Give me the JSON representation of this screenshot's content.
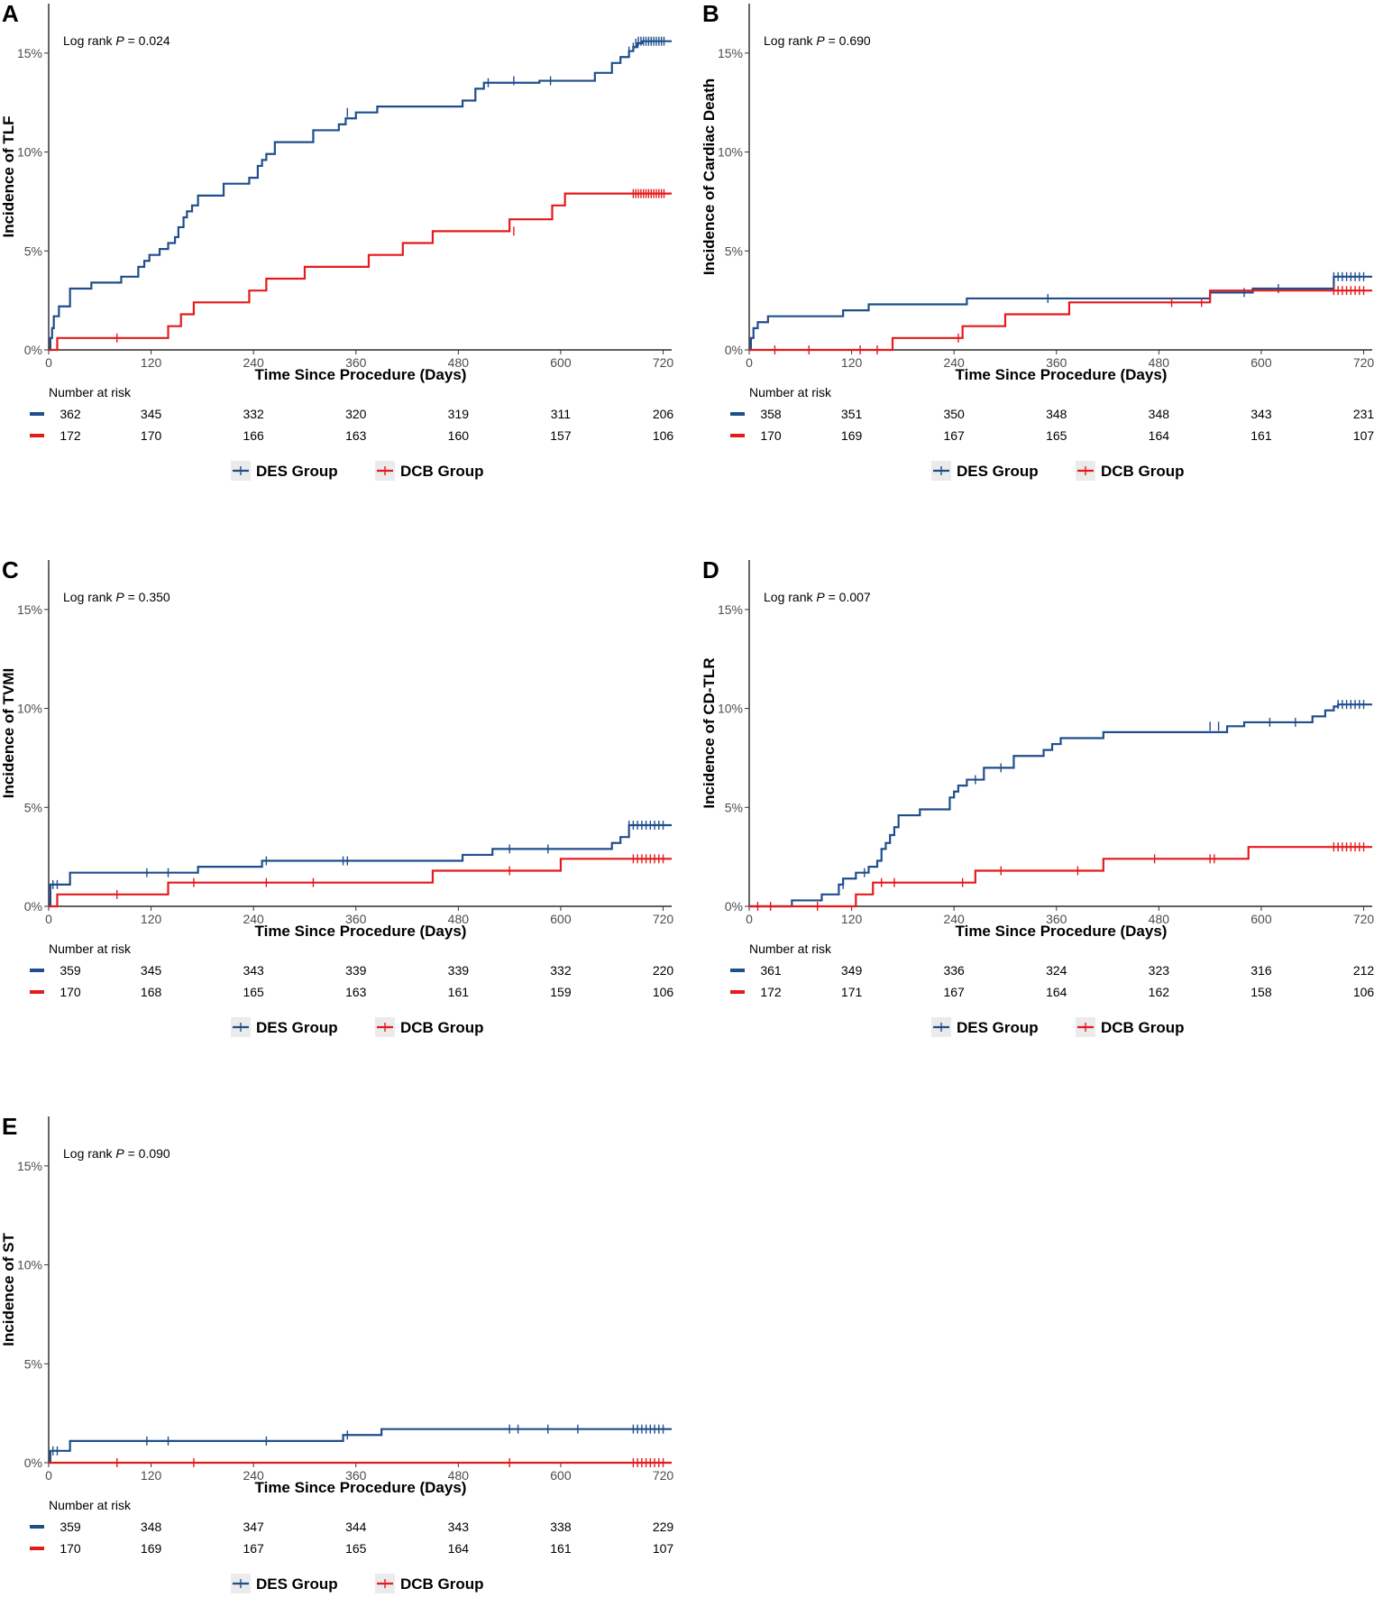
{
  "colors": {
    "des": "#1f4e8c",
    "dcb": "#e41a1c",
    "axis": "#000000",
    "legend_key_bg": "#ebebeb"
  },
  "chart_data": [
    {
      "type": "line",
      "panel_label": "A",
      "ylabel": "Incidence of TLF",
      "xlabel": "Time Since Procedure (Days)",
      "annotation": {
        "prefix": "Log rank ",
        "p_symbol": "P",
        "suffix": " = 0.024"
      },
      "ylim": [
        0,
        17.5
      ],
      "y_ticks": [
        0,
        5,
        10,
        15
      ],
      "y_tick_labels": [
        "0%",
        "5%",
        "10%",
        "15%"
      ],
      "xlim": [
        0,
        730
      ],
      "x_ticks": [
        0,
        120,
        240,
        360,
        480,
        600,
        720
      ],
      "x_tick_labels": [
        "0",
        "120",
        "240",
        "360",
        "480",
        "600",
        "720"
      ],
      "series": [
        {
          "name": "DES Group",
          "color": "#1f4e8c",
          "x": [
            0,
            2,
            4,
            6,
            12,
            25,
            50,
            85,
            105,
            112,
            118,
            130,
            140,
            148,
            152,
            158,
            162,
            168,
            175,
            205,
            235,
            245,
            250,
            255,
            265,
            310,
            340,
            348,
            360,
            385,
            485,
            500,
            510,
            575,
            640,
            660,
            670,
            680,
            685,
            690,
            695,
            730
          ],
          "y": [
            0,
            0.6,
            1.1,
            1.7,
            2.2,
            3.1,
            3.4,
            3.7,
            4.2,
            4.5,
            4.8,
            5.1,
            5.4,
            5.7,
            6.2,
            6.7,
            7.0,
            7.3,
            7.8,
            8.4,
            8.7,
            9.3,
            9.6,
            9.9,
            10.5,
            11.1,
            11.4,
            11.7,
            12.0,
            12.3,
            12.6,
            13.2,
            13.5,
            13.6,
            14.0,
            14.5,
            14.8,
            15.1,
            15.3,
            15.5,
            15.6,
            15.6
          ],
          "censor_x": [
            350,
            515,
            545,
            588,
            680,
            685,
            688,
            691,
            694,
            697,
            700,
            703,
            706,
            709,
            712,
            715,
            718,
            721
          ],
          "censor_y": [
            12.0,
            13.5,
            13.6,
            13.6,
            15.1,
            15.3,
            15.5,
            15.6,
            15.6,
            15.6,
            15.6,
            15.6,
            15.6,
            15.6,
            15.6,
            15.6,
            15.6,
            15.6
          ]
        },
        {
          "name": "DCB Group",
          "color": "#e41a1c",
          "x": [
            0,
            10,
            125,
            140,
            155,
            170,
            235,
            255,
            300,
            375,
            415,
            450,
            540,
            590,
            605,
            730
          ],
          "y": [
            0,
            0.6,
            0.6,
            1.2,
            1.8,
            2.4,
            3.0,
            3.6,
            4.2,
            4.8,
            5.4,
            6.0,
            6.6,
            7.3,
            7.9,
            7.9
          ],
          "censor_x": [
            80,
            545,
            685,
            688,
            691,
            694,
            697,
            700,
            703,
            706,
            709,
            712,
            715,
            718,
            721
          ],
          "censor_y": [
            0.6,
            6.0,
            7.9,
            7.9,
            7.9,
            7.9,
            7.9,
            7.9,
            7.9,
            7.9,
            7.9,
            7.9,
            7.9,
            7.9,
            7.9
          ]
        }
      ],
      "risk_table": {
        "title": "Number at risk",
        "des": [
          "362",
          "345",
          "332",
          "320",
          "319",
          "311",
          "206"
        ],
        "dcb": [
          "172",
          "170",
          "166",
          "163",
          "160",
          "157",
          "106"
        ]
      },
      "legend": [
        "DES Group",
        "DCB Group"
      ]
    },
    {
      "type": "line",
      "panel_label": "B",
      "ylabel": "Incidence of Cardiac Death",
      "xlabel": "Time Since Procedure (Days)",
      "annotation": {
        "prefix": "Log rank ",
        "p_symbol": "P",
        "suffix": " = 0.690"
      },
      "ylim": [
        0,
        17.5
      ],
      "y_ticks": [
        0,
        5,
        10,
        15
      ],
      "y_tick_labels": [
        "0%",
        "5%",
        "10%",
        "15%"
      ],
      "xlim": [
        0,
        730
      ],
      "x_ticks": [
        0,
        120,
        240,
        360,
        480,
        600,
        720
      ],
      "x_tick_labels": [
        "0",
        "120",
        "240",
        "360",
        "480",
        "600",
        "720"
      ],
      "series": [
        {
          "name": "DES Group",
          "color": "#1f4e8c",
          "x": [
            0,
            2,
            5,
            10,
            22,
            110,
            140,
            255,
            540,
            590,
            685,
            730
          ],
          "y": [
            0,
            0.6,
            1.1,
            1.4,
            1.7,
            2.0,
            2.3,
            2.6,
            2.9,
            3.1,
            3.7,
            3.7
          ],
          "censor_x": [
            350,
            580,
            620,
            685,
            690,
            695,
            700,
            705,
            710,
            715,
            720
          ],
          "censor_y": [
            2.6,
            2.9,
            3.1,
            3.7,
            3.7,
            3.7,
            3.7,
            3.7,
            3.7,
            3.7,
            3.7
          ]
        },
        {
          "name": "DCB Group",
          "color": "#e41a1c",
          "x": [
            0,
            168,
            250,
            300,
            375,
            540,
            730
          ],
          "y": [
            0,
            0.6,
            1.2,
            1.8,
            2.4,
            3.0,
            3.0
          ],
          "censor_x": [
            30,
            70,
            130,
            150,
            245,
            495,
            530,
            685,
            690,
            695,
            700,
            705,
            710,
            715,
            720
          ],
          "censor_y": [
            0,
            0,
            0,
            0,
            0.6,
            2.4,
            2.4,
            3.0,
            3.0,
            3.0,
            3.0,
            3.0,
            3.0,
            3.0,
            3.0
          ]
        }
      ],
      "risk_table": {
        "title": "Number at risk",
        "des": [
          "358",
          "351",
          "350",
          "348",
          "348",
          "343",
          "231"
        ],
        "dcb": [
          "170",
          "169",
          "167",
          "165",
          "164",
          "161",
          "107"
        ]
      },
      "legend": [
        "DES Group",
        "DCB Group"
      ]
    },
    {
      "type": "line",
      "panel_label": "C",
      "ylabel": "Incidence of TVMI",
      "xlabel": "Time Since Procedure (Days)",
      "annotation": {
        "prefix": "Log rank ",
        "p_symbol": "P",
        "suffix": " = 0.350"
      },
      "ylim": [
        0,
        17.5
      ],
      "y_ticks": [
        0,
        5,
        10,
        15
      ],
      "y_tick_labels": [
        "0%",
        "5%",
        "10%",
        "15%"
      ],
      "xlim": [
        0,
        730
      ],
      "x_ticks": [
        0,
        120,
        240,
        360,
        480,
        600,
        720
      ],
      "x_tick_labels": [
        "0",
        "120",
        "240",
        "360",
        "480",
        "600",
        "720"
      ],
      "series": [
        {
          "name": "DES Group",
          "color": "#1f4e8c",
          "x": [
            0,
            2,
            25,
            175,
            250,
            485,
            520,
            660,
            670,
            680,
            730
          ],
          "y": [
            0,
            1.1,
            1.7,
            2.0,
            2.3,
            2.6,
            2.9,
            3.2,
            3.5,
            4.1,
            4.1
          ],
          "censor_x": [
            5,
            10,
            115,
            140,
            255,
            345,
            350,
            540,
            585,
            680,
            685,
            690,
            695,
            700,
            705,
            710,
            715,
            720
          ],
          "censor_y": [
            1.1,
            1.1,
            1.7,
            1.7,
            2.3,
            2.3,
            2.3,
            2.9,
            2.9,
            4.1,
            4.1,
            4.1,
            4.1,
            4.1,
            4.1,
            4.1,
            4.1,
            4.1
          ]
        },
        {
          "name": "DCB Group",
          "color": "#e41a1c",
          "x": [
            0,
            10,
            140,
            450,
            600,
            730
          ],
          "y": [
            0,
            0.6,
            1.2,
            1.8,
            2.4,
            2.4
          ],
          "censor_x": [
            80,
            170,
            255,
            310,
            540,
            685,
            690,
            695,
            700,
            705,
            710,
            715,
            720
          ],
          "censor_y": [
            0.6,
            1.2,
            1.2,
            1.2,
            1.8,
            2.4,
            2.4,
            2.4,
            2.4,
            2.4,
            2.4,
            2.4,
            2.4
          ]
        }
      ],
      "risk_table": {
        "title": "Number at risk",
        "des": [
          "359",
          "345",
          "343",
          "339",
          "339",
          "332",
          "220"
        ],
        "dcb": [
          "170",
          "168",
          "165",
          "163",
          "161",
          "159",
          "106"
        ]
      },
      "legend": [
        "DES Group",
        "DCB Group"
      ]
    },
    {
      "type": "line",
      "panel_label": "D",
      "ylabel": "Incidence of CD-TLR",
      "xlabel": "Time Since Procedure (Days)",
      "annotation": {
        "prefix": "Log rank ",
        "p_symbol": "P",
        "suffix": " = 0.007"
      },
      "ylim": [
        0,
        17.5
      ],
      "y_ticks": [
        0,
        5,
        10,
        15
      ],
      "y_tick_labels": [
        "0%",
        "5%",
        "10%",
        "15%"
      ],
      "xlim": [
        0,
        730
      ],
      "x_ticks": [
        0,
        120,
        240,
        360,
        480,
        600,
        720
      ],
      "x_tick_labels": [
        "0",
        "120",
        "240",
        "360",
        "480",
        "600",
        "720"
      ],
      "series": [
        {
          "name": "DES Group",
          "color": "#1f4e8c",
          "x": [
            0,
            50,
            85,
            105,
            110,
            125,
            140,
            150,
            155,
            160,
            165,
            170,
            175,
            200,
            235,
            240,
            245,
            255,
            275,
            310,
            345,
            355,
            365,
            415,
            560,
            580,
            660,
            675,
            685,
            690,
            730
          ],
          "y": [
            0,
            0.3,
            0.6,
            1.1,
            1.4,
            1.7,
            2.0,
            2.3,
            2.9,
            3.2,
            3.6,
            4.0,
            4.6,
            4.9,
            5.5,
            5.8,
            6.1,
            6.4,
            7.0,
            7.6,
            7.9,
            8.2,
            8.5,
            8.8,
            9.1,
            9.3,
            9.6,
            9.9,
            10.1,
            10.2,
            10.2
          ],
          "censor_x": [
            110,
            135,
            265,
            295,
            540,
            550,
            610,
            640,
            690,
            695,
            700,
            705,
            710,
            715,
            720
          ],
          "censor_y": [
            1.1,
            1.7,
            6.4,
            7.0,
            9.1,
            9.1,
            9.3,
            9.3,
            10.2,
            10.2,
            10.2,
            10.2,
            10.2,
            10.2,
            10.2
          ]
        },
        {
          "name": "DCB Group",
          "color": "#e41a1c",
          "x": [
            0,
            125,
            145,
            265,
            415,
            585,
            730
          ],
          "y": [
            0,
            0.6,
            1.2,
            1.8,
            2.4,
            3.0,
            3.0
          ],
          "censor_x": [
            10,
            25,
            80,
            155,
            170,
            250,
            295,
            385,
            475,
            540,
            545,
            685,
            690,
            695,
            700,
            705,
            710,
            715,
            720
          ],
          "censor_y": [
            0,
            0,
            0,
            1.2,
            1.2,
            1.2,
            1.8,
            1.8,
            2.4,
            2.4,
            2.4,
            3.0,
            3.0,
            3.0,
            3.0,
            3.0,
            3.0,
            3.0,
            3.0
          ]
        }
      ],
      "risk_table": {
        "title": "Number at risk",
        "des": [
          "361",
          "349",
          "336",
          "324",
          "323",
          "316",
          "212"
        ],
        "dcb": [
          "172",
          "171",
          "167",
          "164",
          "162",
          "158",
          "106"
        ]
      },
      "legend": [
        "DES Group",
        "DCB Group"
      ]
    },
    {
      "type": "line",
      "panel_label": "E",
      "ylabel": "Incidence of ST",
      "xlabel": "Time Since Procedure (Days)",
      "annotation": {
        "prefix": "Log rank ",
        "p_symbol": "P",
        "suffix": " = 0.090"
      },
      "ylim": [
        0,
        17.5
      ],
      "y_ticks": [
        0,
        5,
        10,
        15
      ],
      "y_tick_labels": [
        "0%",
        "5%",
        "10%",
        "15%"
      ],
      "xlim": [
        0,
        730
      ],
      "x_ticks": [
        0,
        120,
        240,
        360,
        480,
        600,
        720
      ],
      "x_tick_labels": [
        "0",
        "120",
        "240",
        "360",
        "480",
        "600",
        "720"
      ],
      "series": [
        {
          "name": "DES Group",
          "color": "#1f4e8c",
          "x": [
            0,
            2,
            25,
            345,
            390,
            730
          ],
          "y": [
            0,
            0.6,
            1.1,
            1.4,
            1.7,
            1.7
          ],
          "censor_x": [
            5,
            10,
            115,
            140,
            255,
            350,
            540,
            550,
            585,
            620,
            685,
            690,
            695,
            700,
            705,
            710,
            715,
            720
          ],
          "censor_y": [
            0.6,
            0.6,
            1.1,
            1.1,
            1.1,
            1.4,
            1.7,
            1.7,
            1.7,
            1.7,
            1.7,
            1.7,
            1.7,
            1.7,
            1.7,
            1.7,
            1.7,
            1.7
          ]
        },
        {
          "name": "DCB Group",
          "color": "#e41a1c",
          "x": [
            0,
            730
          ],
          "y": [
            0,
            0
          ],
          "censor_x": [
            80,
            170,
            540,
            685,
            690,
            695,
            700,
            705,
            710,
            715,
            720
          ],
          "censor_y": [
            0,
            0,
            0,
            0,
            0,
            0,
            0,
            0,
            0,
            0,
            0
          ]
        }
      ],
      "risk_table": {
        "title": "Number at risk",
        "des": [
          "359",
          "348",
          "347",
          "344",
          "343",
          "338",
          "229"
        ],
        "dcb": [
          "170",
          "169",
          "167",
          "165",
          "164",
          "161",
          "107"
        ]
      },
      "legend": [
        "DES Group",
        "DCB Group"
      ]
    }
  ]
}
